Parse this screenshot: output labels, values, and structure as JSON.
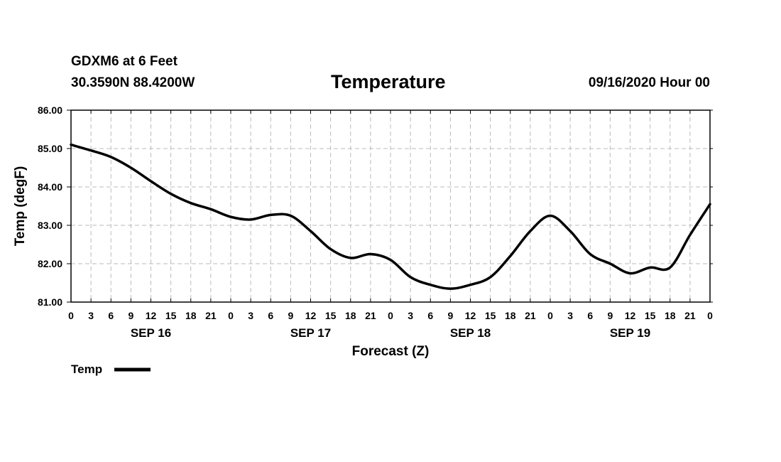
{
  "header": {
    "station": "GDXM6 at 6 Feet",
    "coords": "30.3590N 88.4200W",
    "title": "Temperature",
    "issued": "09/16/2020 Hour 00"
  },
  "chart_data": {
    "type": "line",
    "title": "Temperature",
    "xlabel": "Forecast (Z)",
    "ylabel": "Temp (degF)",
    "ylim": [
      81.0,
      86.0
    ],
    "yticks": [
      "81.00",
      "82.00",
      "83.00",
      "84.00",
      "85.00",
      "86.00"
    ],
    "xlim": [
      0,
      96
    ],
    "x_tick_labels": [
      "0",
      "3",
      "6",
      "9",
      "12",
      "15",
      "18",
      "21",
      "0",
      "3",
      "6",
      "9",
      "12",
      "15",
      "18",
      "21",
      "0",
      "3",
      "6",
      "9",
      "12",
      "15",
      "18",
      "21",
      "0",
      "3",
      "6",
      "9",
      "12",
      "15",
      "18",
      "21",
      "0"
    ],
    "day_labels": [
      {
        "label": "SEP 16",
        "hour": 12
      },
      {
        "label": "SEP 17",
        "hour": 36
      },
      {
        "label": "SEP 18",
        "hour": 60
      },
      {
        "label": "SEP 19",
        "hour": 84
      }
    ],
    "grid": true,
    "series": [
      {
        "name": "Temp",
        "color": "#000000",
        "x": [
          0,
          3,
          6,
          9,
          12,
          15,
          18,
          21,
          24,
          27,
          30,
          33,
          36,
          39,
          42,
          45,
          48,
          51,
          54,
          57,
          60,
          63,
          66,
          69,
          72,
          75,
          78,
          81,
          84,
          87,
          90,
          93,
          96
        ],
        "values": [
          85.1,
          84.95,
          84.78,
          84.5,
          84.15,
          83.82,
          83.58,
          83.42,
          83.22,
          83.15,
          83.27,
          83.25,
          82.85,
          82.38,
          82.15,
          82.25,
          82.1,
          81.65,
          81.45,
          81.35,
          81.45,
          81.65,
          82.2,
          82.85,
          83.25,
          82.85,
          82.25,
          82.0,
          81.75,
          81.9,
          81.9,
          82.75,
          83.55
        ]
      }
    ],
    "legend": {
      "label": "Temp",
      "position": "bottom-left"
    }
  }
}
